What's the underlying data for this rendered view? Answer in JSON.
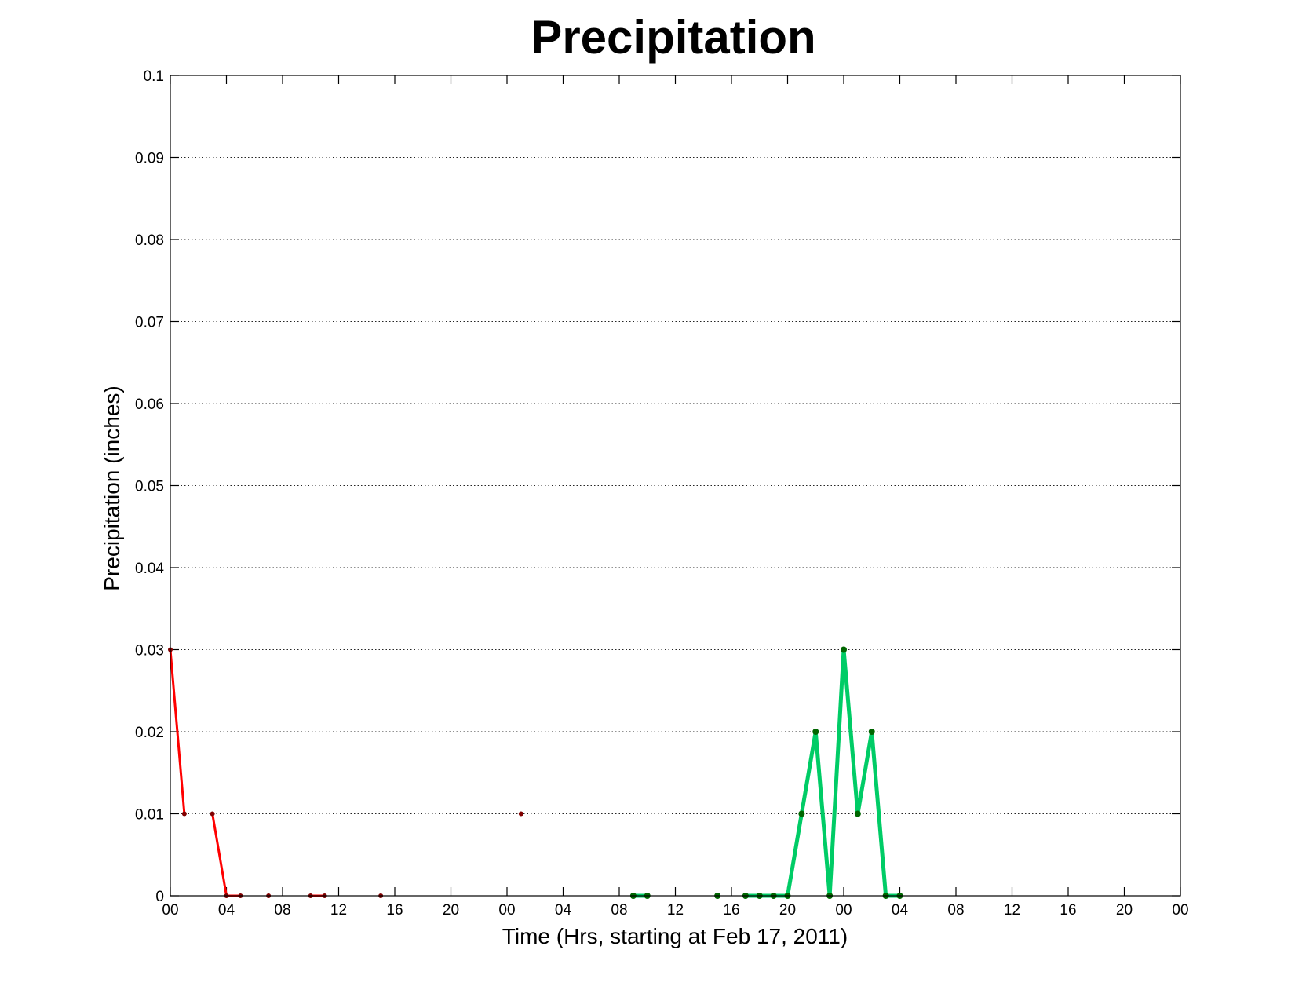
{
  "chart_data": {
    "type": "line",
    "title": "Precipitation",
    "xlabel": "Time (Hrs, starting at Feb 17, 2011)",
    "ylabel": "Precipitation (inches)",
    "xlim": [
      0,
      72
    ],
    "ylim": [
      0,
      0.1
    ],
    "grid": "horizontal dotted",
    "x_ticks": [
      0,
      4,
      8,
      12,
      16,
      20,
      24,
      28,
      32,
      36,
      40,
      44,
      48,
      52,
      56,
      60,
      64,
      68,
      72
    ],
    "x_tick_labels": [
      "00",
      "04",
      "08",
      "12",
      "16",
      "20",
      "00",
      "04",
      "08",
      "12",
      "16",
      "20",
      "00",
      "04",
      "08",
      "12",
      "16",
      "20",
      "00"
    ],
    "y_ticks": [
      0,
      0.01,
      0.02,
      0.03,
      0.04,
      0.05,
      0.06,
      0.07,
      0.08,
      0.09,
      0.1
    ],
    "y_tick_labels": [
      "0",
      "0.01",
      "0.02",
      "0.03",
      "0.04",
      "0.05",
      "0.06",
      "0.07",
      "0.08",
      "0.09",
      "0.1"
    ],
    "series": [
      {
        "color": "#ff0000",
        "marker_color": "#800000",
        "points": [
          [
            0,
            0.03
          ],
          [
            1,
            0.01
          ],
          null,
          [
            3,
            0.01
          ],
          [
            4,
            0
          ],
          [
            5,
            0
          ],
          null,
          [
            7,
            0
          ],
          null,
          [
            10,
            0
          ],
          [
            11,
            0
          ],
          null,
          [
            15,
            0
          ],
          null,
          [
            25,
            0.01
          ]
        ]
      },
      {
        "color": "#00cc66",
        "marker_color": "#006600",
        "points": [
          [
            33,
            0
          ],
          [
            34,
            0
          ],
          null,
          [
            39,
            0
          ],
          null,
          [
            41,
            0
          ],
          [
            42,
            0
          ],
          [
            43,
            0
          ],
          [
            44,
            0
          ],
          [
            45,
            0.01
          ],
          [
            46,
            0.02
          ],
          [
            47,
            0
          ],
          [
            48,
            0.03
          ],
          [
            49,
            0.01
          ],
          [
            50,
            0.02
          ],
          [
            51,
            0
          ],
          [
            52,
            0
          ]
        ]
      }
    ]
  }
}
